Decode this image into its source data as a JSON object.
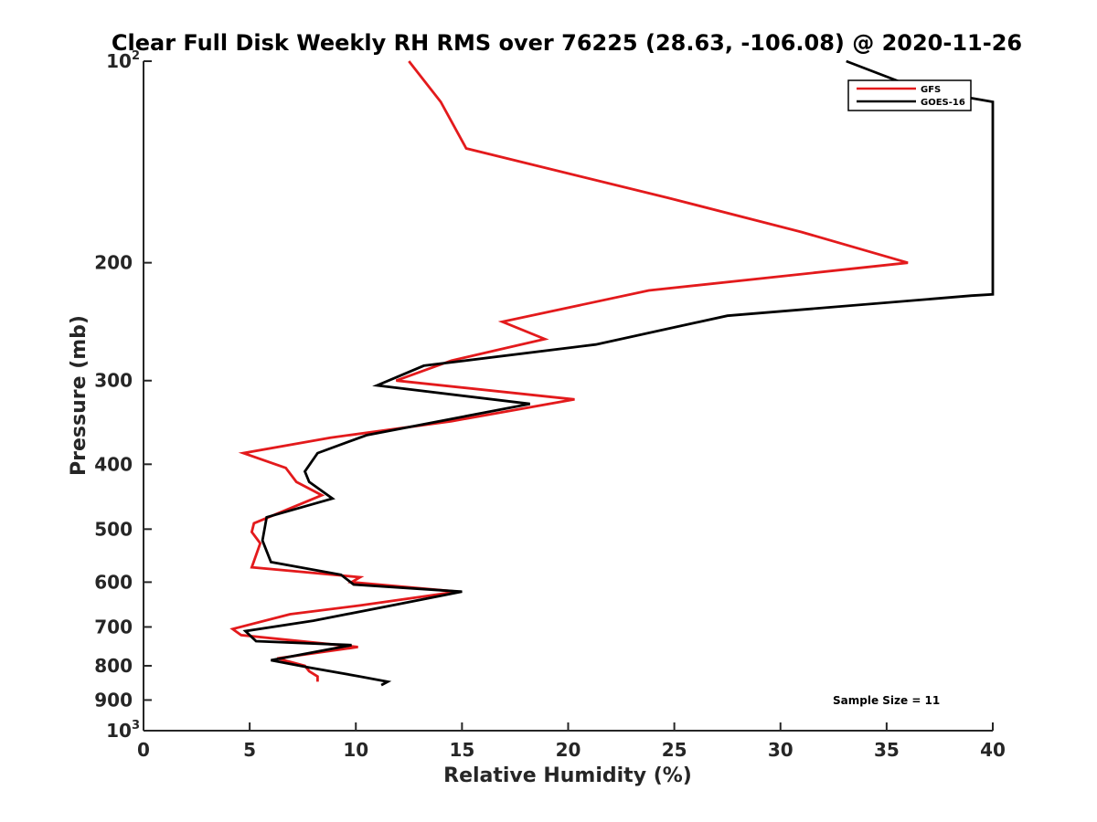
{
  "chart_data": {
    "type": "line",
    "title": "Clear Full Disk Weekly RH RMS over 76225 (28.63, -106.08) @ 2020-11-26",
    "xlabel": "Relative Humidity (%)",
    "ylabel": "Pressure (mb)",
    "xlim": [
      0,
      40
    ],
    "ylim": [
      100,
      1000
    ],
    "y_scale": "log",
    "y_reversed": true,
    "grid": false,
    "legend_position": "top-right",
    "x_ticks": [
      "0",
      "5",
      "10",
      "15",
      "20",
      "25",
      "30",
      "35",
      "40"
    ],
    "y_ticks": [
      {
        "value": 100,
        "base": "10",
        "exp": "2"
      },
      {
        "value": 200,
        "label": "200"
      },
      {
        "value": 300,
        "label": "300"
      },
      {
        "value": 400,
        "label": "400"
      },
      {
        "value": 500,
        "label": "500"
      },
      {
        "value": 600,
        "label": "600"
      },
      {
        "value": 700,
        "label": "700"
      },
      {
        "value": 800,
        "label": "800"
      },
      {
        "value": 900,
        "label": "900"
      },
      {
        "value": 1000,
        "base": "10",
        "exp": "3"
      }
    ],
    "series": [
      {
        "name": "GFS",
        "color": "#e31a1c",
        "points": [
          {
            "x": 12.5,
            "p": 100
          },
          {
            "x": 14.0,
            "p": 115
          },
          {
            "x": 15.2,
            "p": 135
          },
          {
            "x": 24.7,
            "p": 160
          },
          {
            "x": 31.0,
            "p": 180
          },
          {
            "x": 36.0,
            "p": 200
          },
          {
            "x": 23.8,
            "p": 220
          },
          {
            "x": 16.9,
            "p": 245
          },
          {
            "x": 18.9,
            "p": 260
          },
          {
            "x": 14.5,
            "p": 280
          },
          {
            "x": 11.9,
            "p": 300
          },
          {
            "x": 20.3,
            "p": 320
          },
          {
            "x": 14.5,
            "p": 345
          },
          {
            "x": 8.8,
            "p": 365
          },
          {
            "x": 4.7,
            "p": 385
          },
          {
            "x": 6.7,
            "p": 405
          },
          {
            "x": 7.2,
            "p": 425
          },
          {
            "x": 8.4,
            "p": 445
          },
          {
            "x": 5.2,
            "p": 490
          },
          {
            "x": 5.1,
            "p": 505
          },
          {
            "x": 5.5,
            "p": 525
          },
          {
            "x": 5.1,
            "p": 570
          },
          {
            "x": 10.2,
            "p": 590
          },
          {
            "x": 9.8,
            "p": 600
          },
          {
            "x": 14.8,
            "p": 620
          },
          {
            "x": 10.2,
            "p": 650
          },
          {
            "x": 6.9,
            "p": 670
          },
          {
            "x": 4.2,
            "p": 705
          },
          {
            "x": 4.6,
            "p": 720
          },
          {
            "x": 10.1,
            "p": 750
          },
          {
            "x": 6.3,
            "p": 780
          },
          {
            "x": 7.6,
            "p": 800
          },
          {
            "x": 7.8,
            "p": 815
          },
          {
            "x": 8.2,
            "p": 830
          },
          {
            "x": 8.2,
            "p": 845
          }
        ]
      },
      {
        "name": "GOES-16",
        "color": "#000000",
        "points": [
          {
            "x": 33.1,
            "p": 100
          },
          {
            "x": 36.5,
            "p": 110
          },
          {
            "x": 40.0,
            "p": 115
          },
          {
            "x": 40.0,
            "p": 223
          },
          {
            "x": 39.0,
            "p": 224
          },
          {
            "x": 27.5,
            "p": 240
          },
          {
            "x": 21.3,
            "p": 265
          },
          {
            "x": 13.2,
            "p": 285
          },
          {
            "x": 11.0,
            "p": 305
          },
          {
            "x": 18.2,
            "p": 325
          },
          {
            "x": 10.5,
            "p": 362
          },
          {
            "x": 8.2,
            "p": 385
          },
          {
            "x": 7.6,
            "p": 410
          },
          {
            "x": 7.8,
            "p": 425
          },
          {
            "x": 8.9,
            "p": 450
          },
          {
            "x": 5.8,
            "p": 480
          },
          {
            "x": 5.6,
            "p": 520
          },
          {
            "x": 6.0,
            "p": 560
          },
          {
            "x": 9.3,
            "p": 585
          },
          {
            "x": 9.9,
            "p": 605
          },
          {
            "x": 15.0,
            "p": 620
          },
          {
            "x": 11.7,
            "p": 650
          },
          {
            "x": 8.0,
            "p": 685
          },
          {
            "x": 4.8,
            "p": 710
          },
          {
            "x": 5.3,
            "p": 735
          },
          {
            "x": 9.8,
            "p": 745
          },
          {
            "x": 6.0,
            "p": 785
          },
          {
            "x": 7.8,
            "p": 805
          },
          {
            "x": 10.2,
            "p": 830
          },
          {
            "x": 11.5,
            "p": 845
          },
          {
            "x": 11.2,
            "p": 855
          }
        ]
      }
    ],
    "annotations": [
      "Sample Size = 11"
    ]
  }
}
